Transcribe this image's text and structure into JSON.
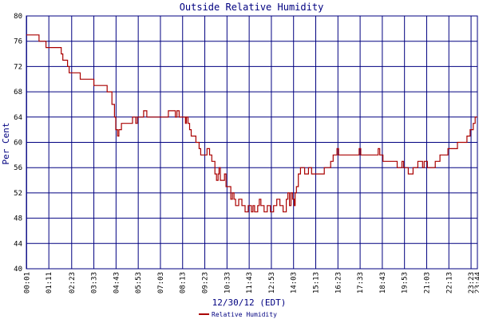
{
  "chart_data": {
    "type": "line",
    "title": "Outside Relative Humidity",
    "xlabel": "12/30/12 (EDT)",
    "ylabel": "Per Cent",
    "ylim": [
      40,
      80
    ],
    "yticks": [
      40,
      44,
      48,
      52,
      56,
      60,
      64,
      68,
      72,
      76,
      80
    ],
    "xlim": [
      0,
      1423
    ],
    "xticks": [
      {
        "minute": 1,
        "label": "00:01"
      },
      {
        "minute": 71,
        "label": "01:11"
      },
      {
        "minute": 143,
        "label": "02:23"
      },
      {
        "minute": 213,
        "label": "03:33"
      },
      {
        "minute": 283,
        "label": "04:43"
      },
      {
        "minute": 353,
        "label": "05:53"
      },
      {
        "minute": 423,
        "label": "07:03"
      },
      {
        "minute": 493,
        "label": "08:13"
      },
      {
        "minute": 563,
        "label": "09:23"
      },
      {
        "minute": 633,
        "label": "10:33"
      },
      {
        "minute": 703,
        "label": "11:43"
      },
      {
        "minute": 773,
        "label": "12:53"
      },
      {
        "minute": 843,
        "label": "14:03"
      },
      {
        "minute": 913,
        "label": "15:13"
      },
      {
        "minute": 983,
        "label": "16:23"
      },
      {
        "minute": 1053,
        "label": "17:33"
      },
      {
        "minute": 1123,
        "label": "18:43"
      },
      {
        "minute": 1193,
        "label": "19:53"
      },
      {
        "minute": 1263,
        "label": "21:03"
      },
      {
        "minute": 1333,
        "label": "22:13"
      },
      {
        "minute": 1403,
        "label": "23:23"
      },
      {
        "minute": 1424,
        "label": "23:44"
      }
    ],
    "grid": true,
    "legend": "bottom-center",
    "series": [
      {
        "name": "Relative Humidity",
        "color": "#aa0000",
        "points": [
          [
            0,
            77
          ],
          [
            38,
            77
          ],
          [
            40,
            76
          ],
          [
            60,
            76
          ],
          [
            62,
            75
          ],
          [
            108,
            75
          ],
          [
            110,
            74
          ],
          [
            115,
            73
          ],
          [
            125,
            73
          ],
          [
            130,
            72
          ],
          [
            135,
            71
          ],
          [
            165,
            71
          ],
          [
            170,
            70
          ],
          [
            210,
            70
          ],
          [
            213,
            69
          ],
          [
            250,
            69
          ],
          [
            255,
            68
          ],
          [
            262,
            68
          ],
          [
            270,
            66
          ],
          [
            278,
            64
          ],
          [
            282,
            62
          ],
          [
            288,
            61
          ],
          [
            292,
            62
          ],
          [
            300,
            63
          ],
          [
            330,
            63
          ],
          [
            335,
            64
          ],
          [
            345,
            63
          ],
          [
            350,
            64
          ],
          [
            355,
            64
          ],
          [
            362,
            64
          ],
          [
            370,
            65
          ],
          [
            380,
            64
          ],
          [
            405,
            64
          ],
          [
            425,
            64
          ],
          [
            440,
            64
          ],
          [
            448,
            65
          ],
          [
            460,
            65
          ],
          [
            470,
            64
          ],
          [
            475,
            65
          ],
          [
            482,
            64
          ],
          [
            498,
            64
          ],
          [
            502,
            63
          ],
          [
            505,
            64
          ],
          [
            510,
            63
          ],
          [
            515,
            62
          ],
          [
            520,
            61
          ],
          [
            530,
            61
          ],
          [
            535,
            60
          ],
          [
            545,
            59
          ],
          [
            550,
            58
          ],
          [
            560,
            58
          ],
          [
            570,
            59
          ],
          [
            578,
            58
          ],
          [
            585,
            57
          ],
          [
            595,
            55
          ],
          [
            600,
            54
          ],
          [
            605,
            55
          ],
          [
            608,
            56
          ],
          [
            612,
            54
          ],
          [
            620,
            54
          ],
          [
            625,
            55
          ],
          [
            630,
            53
          ],
          [
            640,
            53
          ],
          [
            645,
            51
          ],
          [
            650,
            52
          ],
          [
            655,
            51
          ],
          [
            660,
            50
          ],
          [
            670,
            51
          ],
          [
            680,
            50
          ],
          [
            690,
            49
          ],
          [
            700,
            50
          ],
          [
            710,
            49
          ],
          [
            715,
            50
          ],
          [
            720,
            49
          ],
          [
            730,
            50
          ],
          [
            735,
            51
          ],
          [
            740,
            50
          ],
          [
            750,
            49
          ],
          [
            760,
            50
          ],
          [
            770,
            49
          ],
          [
            780,
            50
          ],
          [
            790,
            51
          ],
          [
            800,
            50
          ],
          [
            810,
            49
          ],
          [
            820,
            51
          ],
          [
            825,
            52
          ],
          [
            830,
            50
          ],
          [
            835,
            52
          ],
          [
            840,
            51
          ],
          [
            845,
            50
          ],
          [
            848,
            52
          ],
          [
            852,
            53
          ],
          [
            858,
            55
          ],
          [
            865,
            56
          ],
          [
            870,
            56
          ],
          [
            878,
            55
          ],
          [
            885,
            55
          ],
          [
            890,
            56
          ],
          [
            900,
            55
          ],
          [
            930,
            55
          ],
          [
            940,
            56
          ],
          [
            950,
            56
          ],
          [
            960,
            57
          ],
          [
            968,
            58
          ],
          [
            975,
            58
          ],
          [
            980,
            59
          ],
          [
            985,
            58
          ],
          [
            1040,
            58
          ],
          [
            1050,
            59
          ],
          [
            1055,
            58
          ],
          [
            1100,
            58
          ],
          [
            1110,
            59
          ],
          [
            1115,
            58
          ],
          [
            1125,
            57
          ],
          [
            1165,
            57
          ],
          [
            1170,
            56
          ],
          [
            1180,
            56
          ],
          [
            1185,
            57
          ],
          [
            1190,
            56
          ],
          [
            1200,
            56
          ],
          [
            1205,
            55
          ],
          [
            1215,
            55
          ],
          [
            1220,
            56
          ],
          [
            1230,
            56
          ],
          [
            1235,
            57
          ],
          [
            1240,
            57
          ],
          [
            1250,
            56
          ],
          [
            1255,
            57
          ],
          [
            1265,
            56
          ],
          [
            1275,
            56
          ],
          [
            1290,
            57
          ],
          [
            1305,
            58
          ],
          [
            1320,
            58
          ],
          [
            1330,
            59
          ],
          [
            1340,
            59
          ],
          [
            1350,
            59
          ],
          [
            1360,
            60
          ],
          [
            1370,
            60
          ],
          [
            1380,
            60
          ],
          [
            1390,
            61
          ],
          [
            1400,
            62
          ],
          [
            1410,
            63
          ],
          [
            1416,
            64
          ],
          [
            1423,
            64
          ]
        ]
      }
    ]
  }
}
